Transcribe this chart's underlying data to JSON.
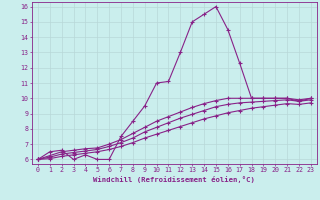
{
  "xlabel": "Windchill (Refroidissement éolien,°C)",
  "xlim": [
    -0.5,
    23.5
  ],
  "ylim": [
    5.7,
    16.3
  ],
  "xticks": [
    0,
    1,
    2,
    3,
    4,
    5,
    6,
    7,
    8,
    9,
    10,
    11,
    12,
    13,
    14,
    15,
    16,
    17,
    18,
    19,
    20,
    21,
    22,
    23
  ],
  "yticks": [
    6,
    7,
    8,
    9,
    10,
    11,
    12,
    13,
    14,
    15,
    16
  ],
  "bg_color": "#caeeed",
  "line_color": "#882288",
  "grid_color": "#b8d8d8",
  "lines": [
    {
      "x": [
        0,
        1,
        2,
        3,
        4,
        5,
        6,
        7,
        8,
        9,
        10,
        11,
        12,
        13,
        14,
        15,
        16,
        17,
        18,
        19,
        20,
        21,
        22,
        23
      ],
      "y": [
        6.0,
        6.5,
        6.6,
        6.0,
        6.3,
        6.0,
        6.0,
        7.5,
        8.5,
        9.5,
        11.0,
        11.1,
        13.0,
        15.0,
        15.5,
        16.0,
        14.5,
        12.3,
        10.0,
        10.0,
        10.0,
        10.0,
        9.8,
        10.0
      ]
    },
    {
      "x": [
        0,
        1,
        2,
        3,
        4,
        5,
        6,
        7,
        8,
        9,
        10,
        11,
        12,
        13,
        14,
        15,
        16,
        17,
        18,
        19,
        20,
        21,
        22,
        23
      ],
      "y": [
        6.0,
        6.25,
        6.5,
        6.6,
        6.7,
        6.75,
        7.0,
        7.3,
        7.7,
        8.1,
        8.5,
        8.8,
        9.1,
        9.4,
        9.65,
        9.85,
        10.0,
        10.0,
        10.0,
        10.0,
        10.0,
        10.0,
        9.9,
        10.0
      ]
    },
    {
      "x": [
        0,
        1,
        2,
        3,
        4,
        5,
        6,
        7,
        8,
        9,
        10,
        11,
        12,
        13,
        14,
        15,
        16,
        17,
        18,
        19,
        20,
        21,
        22,
        23
      ],
      "y": [
        6.0,
        6.15,
        6.35,
        6.45,
        6.55,
        6.65,
        6.85,
        7.1,
        7.4,
        7.8,
        8.1,
        8.4,
        8.7,
        8.95,
        9.2,
        9.45,
        9.6,
        9.7,
        9.75,
        9.8,
        9.85,
        9.9,
        9.8,
        9.9
      ]
    },
    {
      "x": [
        0,
        1,
        2,
        3,
        4,
        5,
        6,
        7,
        8,
        9,
        10,
        11,
        12,
        13,
        14,
        15,
        16,
        17,
        18,
        19,
        20,
        21,
        22,
        23
      ],
      "y": [
        6.0,
        6.05,
        6.2,
        6.3,
        6.4,
        6.5,
        6.65,
        6.85,
        7.1,
        7.4,
        7.65,
        7.9,
        8.15,
        8.4,
        8.65,
        8.85,
        9.05,
        9.2,
        9.35,
        9.45,
        9.55,
        9.65,
        9.6,
        9.7
      ]
    }
  ]
}
